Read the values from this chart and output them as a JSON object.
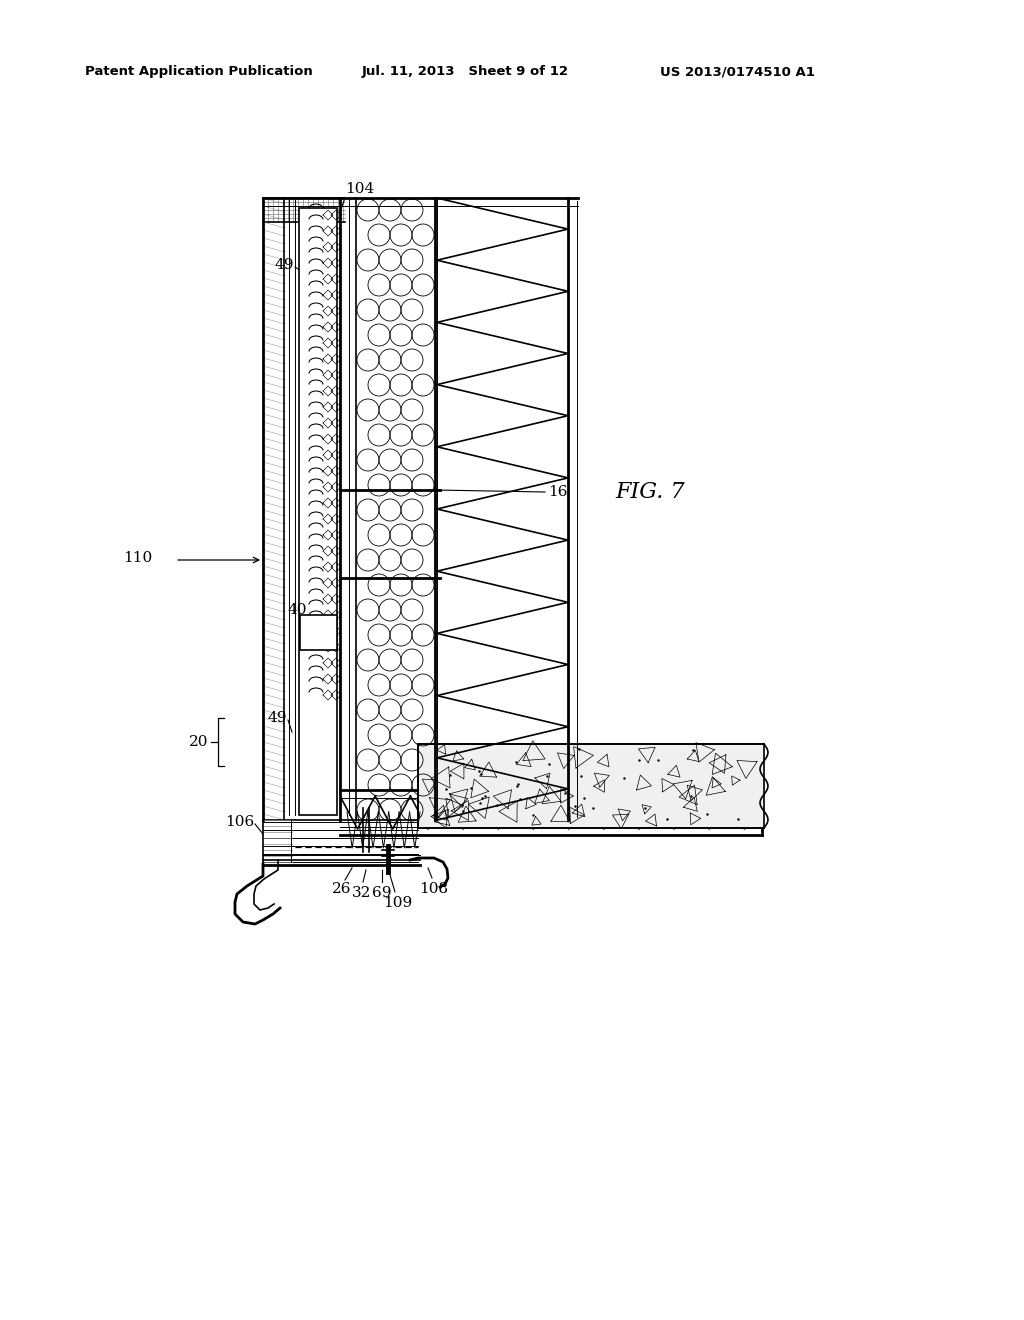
{
  "bg_color": "#ffffff",
  "header_left": "Patent Application Publication",
  "header_mid": "Jul. 11, 2013   Sheet 9 of 12",
  "header_right": "US 2013/0174510 A1",
  "fig_label": "FIG. 7",
  "line_color": "#000000",
  "concrete_fill": "#f0f0f0"
}
